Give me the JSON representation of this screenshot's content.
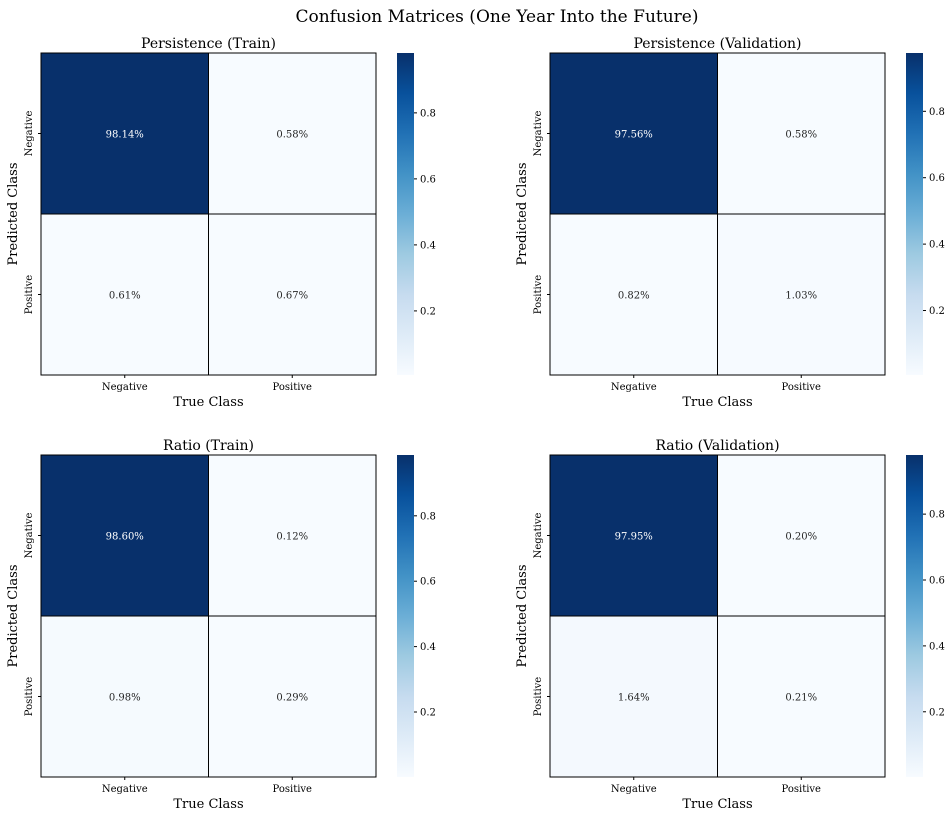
{
  "figure": {
    "suptitle": "Confusion Matrices (One Year Into the Future)"
  },
  "colormap": {
    "name": "Blues",
    "stops": [
      "#f7fbff",
      "#deebf7",
      "#c6dbef",
      "#9ecae1",
      "#6baed6",
      "#4292c6",
      "#2171b5",
      "#08519c",
      "#08306b"
    ],
    "cell_border": "#000000",
    "light_text": "#ffffff",
    "dark_text": "#262626"
  },
  "chart_data": [
    {
      "type": "heatmap",
      "title": "Persistence (Train)",
      "xlabel": "True Class",
      "ylabel": "Predicted Class",
      "x_categories": [
        "Negative",
        "Positive"
      ],
      "y_categories": [
        "Negative",
        "Positive"
      ],
      "values": [
        [
          0.9814,
          0.0058
        ],
        [
          0.0061,
          0.0067
        ]
      ],
      "annotations": [
        [
          "98.14%",
          "0.58%"
        ],
        [
          "0.61%",
          "0.67%"
        ]
      ],
      "colorbar": {
        "min": 0.0058,
        "max": 0.9814,
        "ticks": [
          0.2,
          0.4,
          0.6,
          0.8
        ],
        "tick_labels": [
          "0.2",
          "0.4",
          "0.6",
          "0.8"
        ]
      }
    },
    {
      "type": "heatmap",
      "title": "Persistence (Validation)",
      "xlabel": "True Class",
      "ylabel": "Predicted Class",
      "x_categories": [
        "Negative",
        "Positive"
      ],
      "y_categories": [
        "Negative",
        "Positive"
      ],
      "values": [
        [
          0.9756,
          0.0058
        ],
        [
          0.0082,
          0.0103
        ]
      ],
      "annotations": [
        [
          "97.56%",
          "0.58%"
        ],
        [
          "0.82%",
          "1.03%"
        ]
      ],
      "colorbar": {
        "min": 0.0058,
        "max": 0.9756,
        "ticks": [
          0.2,
          0.4,
          0.6,
          0.8
        ],
        "tick_labels": [
          "0.2",
          "0.4",
          "0.6",
          "0.8"
        ]
      }
    },
    {
      "type": "heatmap",
      "title": "Ratio (Train)",
      "xlabel": "True Class",
      "ylabel": "Predicted Class",
      "x_categories": [
        "Negative",
        "Positive"
      ],
      "y_categories": [
        "Negative",
        "Positive"
      ],
      "values": [
        [
          0.986,
          0.0012
        ],
        [
          0.0098,
          0.0029
        ]
      ],
      "annotations": [
        [
          "98.60%",
          "0.12%"
        ],
        [
          "0.98%",
          "0.29%"
        ]
      ],
      "colorbar": {
        "min": 0.0012,
        "max": 0.986,
        "ticks": [
          0.2,
          0.4,
          0.6,
          0.8
        ],
        "tick_labels": [
          "0.2",
          "0.4",
          "0.6",
          "0.8"
        ]
      }
    },
    {
      "type": "heatmap",
      "title": "Ratio (Validation)",
      "xlabel": "True Class",
      "ylabel": "Predicted Class",
      "x_categories": [
        "Negative",
        "Positive"
      ],
      "y_categories": [
        "Negative",
        "Positive"
      ],
      "values": [
        [
          0.9795,
          0.002
        ],
        [
          0.0164,
          0.0021
        ]
      ],
      "annotations": [
        [
          "97.95%",
          "0.20%"
        ],
        [
          "1.64%",
          "0.21%"
        ]
      ],
      "colorbar": {
        "min": 0.002,
        "max": 0.9795,
        "ticks": [
          0.2,
          0.4,
          0.6,
          0.8
        ],
        "tick_labels": [
          "0.2",
          "0.4",
          "0.6",
          "0.8"
        ]
      }
    }
  ]
}
